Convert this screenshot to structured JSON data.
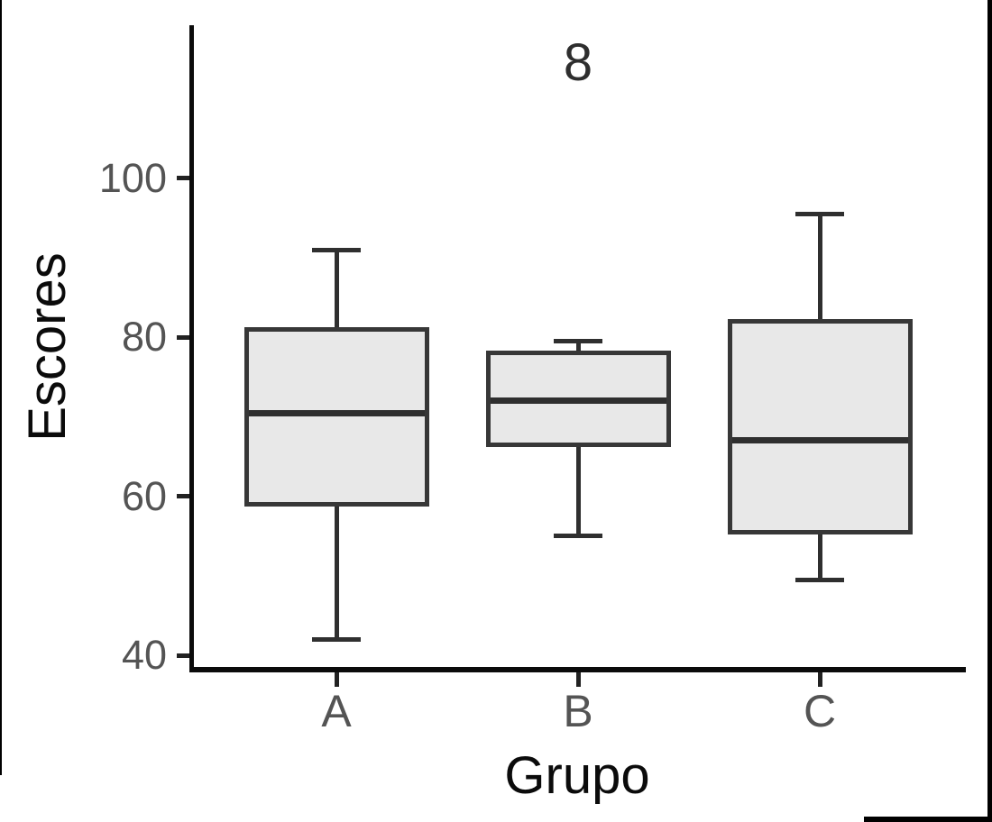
{
  "chart_data": {
    "type": "boxplot",
    "title": "",
    "xlabel": "Grupo",
    "ylabel": "Escores",
    "categories": [
      "A",
      "B",
      "C"
    ],
    "y_ticks": [
      40,
      60,
      80,
      100
    ],
    "y_axis_visible_range": [
      38,
      119
    ],
    "grid": "off",
    "legend": "none",
    "series": [
      {
        "group": "A",
        "whisker_low": 42,
        "q1": 59,
        "median": 70.5,
        "q3": 81,
        "whisker_high": 91
      },
      {
        "group": "B",
        "whisker_low": 55,
        "q1": 66.5,
        "median": 72,
        "q3": 78,
        "whisker_high": 79.5
      },
      {
        "group": "C",
        "whisker_low": 49.5,
        "q1": 55.5,
        "median": 67,
        "q3": 82,
        "whisker_high": 95.5
      }
    ],
    "annotations": [
      {
        "text": "8",
        "category": "B",
        "y": 114.5
      }
    ],
    "colors": {
      "background": "#ffffff",
      "box_fill": "#e8e8e8",
      "box_border": "#373737",
      "whisker": "#2f2f2f",
      "median": "#2f2f2f",
      "axis_line": "#0b0b0b",
      "tick_mark": "#222222",
      "tick_label": "#545454",
      "axis_title": "#0b0b0b",
      "annotation_text": "#2e2e2e",
      "screen_edge": "#000000"
    }
  }
}
